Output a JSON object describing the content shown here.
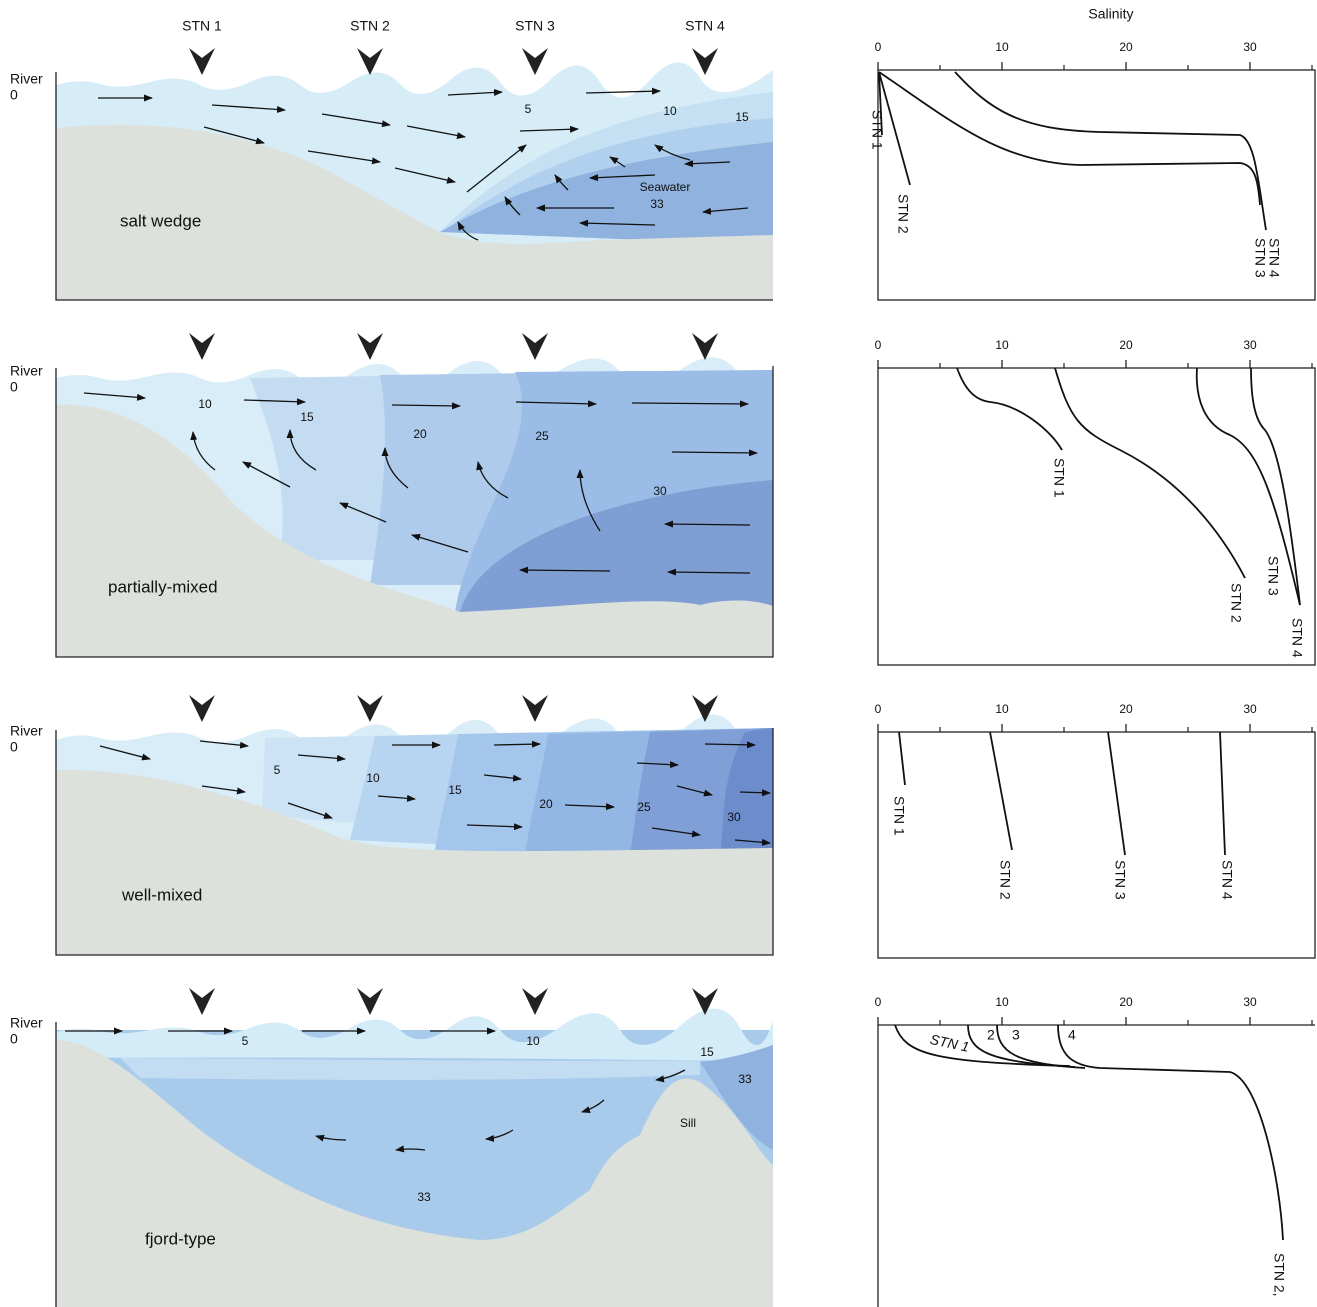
{
  "header": {
    "stations": [
      "STN 1",
      "STN 2",
      "STN 3",
      "STN 4"
    ]
  },
  "salinity_axis": {
    "title": "Salinity",
    "ticks": [
      0,
      10,
      20,
      30
    ]
  },
  "panels": [
    {
      "name": "salt wedge",
      "river": "River",
      "river_mark": "0",
      "contour_labels": [
        "5",
        "10",
        "15",
        "Seawater",
        "33"
      ],
      "profile_labels": [
        "STN 1",
        "STN 2",
        "STN 4",
        "STN 3"
      ]
    },
    {
      "name": "partially-mixed",
      "river": "River",
      "river_mark": "0",
      "contour_labels": [
        "10",
        "15",
        "20",
        "25",
        "30"
      ],
      "profile_labels": [
        "STN 1",
        "STN 2",
        "STN 3",
        "STN 4"
      ]
    },
    {
      "name": "well-mixed",
      "river": "River",
      "river_mark": "0",
      "contour_labels": [
        "5",
        "10",
        "15",
        "20",
        "25",
        "30"
      ],
      "profile_labels": [
        "STN 1",
        "STN 2",
        "STN 3",
        "STN 4"
      ]
    },
    {
      "name": "fjord-type",
      "river": "River",
      "river_mark": "0",
      "contour_labels": [
        "5",
        "10",
        "15",
        "33",
        "Sill",
        "33"
      ],
      "profile_labels": [
        "STN 1",
        "2",
        "3",
        "4",
        "STN 2,"
      ]
    }
  ]
}
